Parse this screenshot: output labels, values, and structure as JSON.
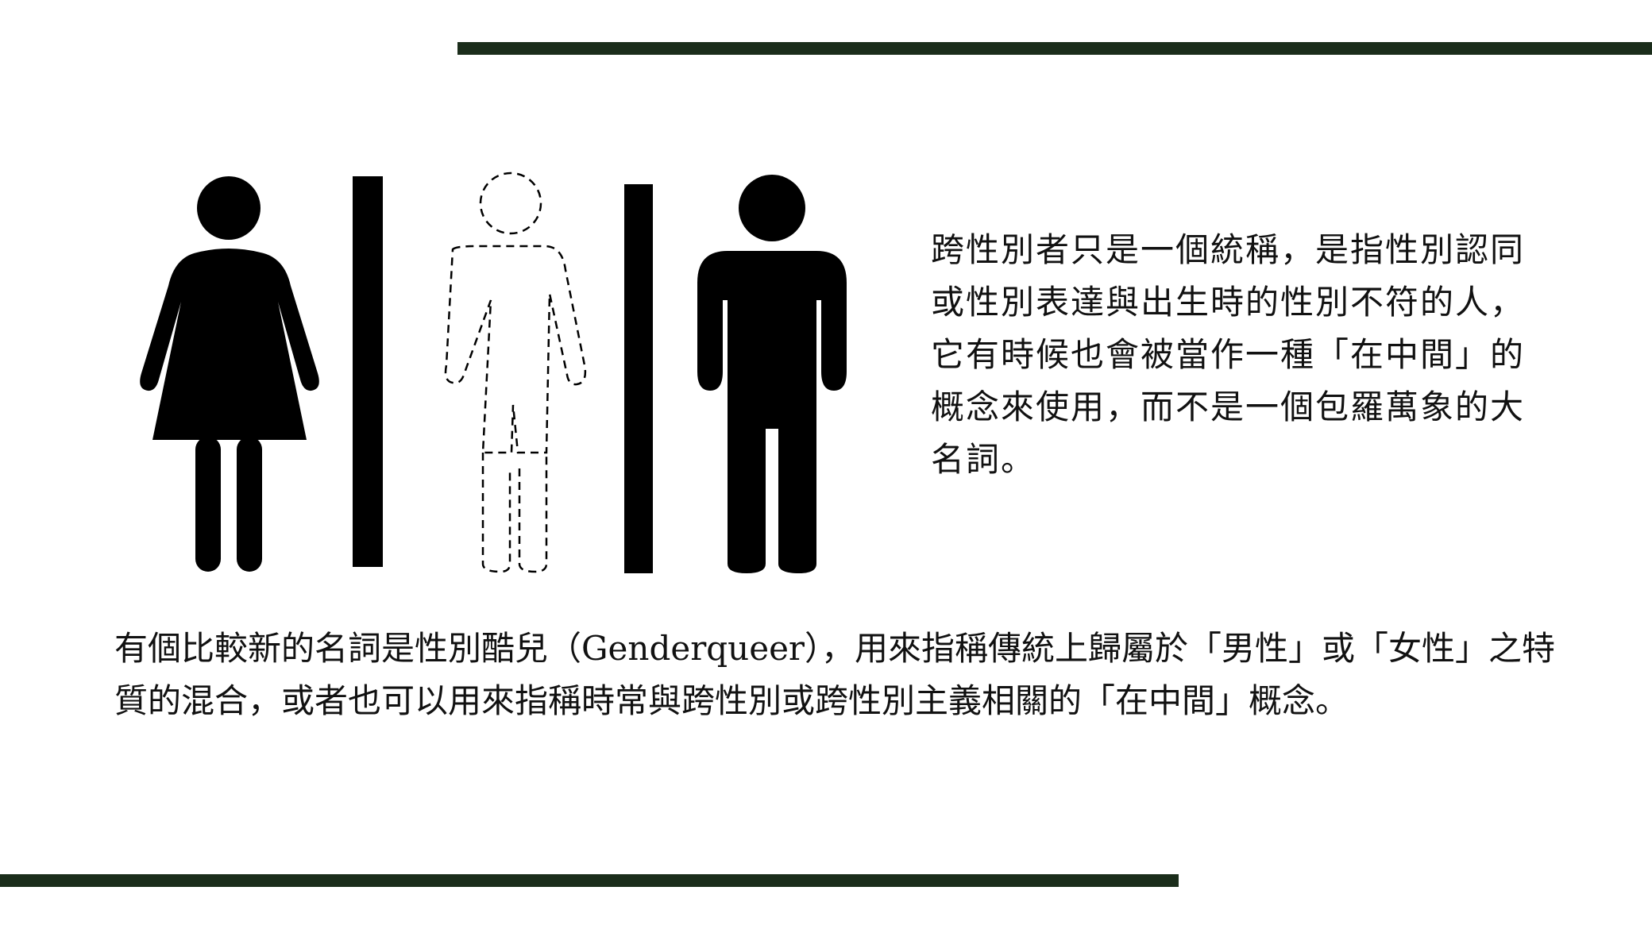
{
  "colors": {
    "rule": "#1b2d1b",
    "icon": "#000000",
    "background": "#ffffff"
  },
  "icons": {
    "female": "female-figure-icon",
    "transgender": "dashed-outline-figure-icon",
    "male": "male-figure-icon"
  },
  "side_paragraph": "跨性別者只是一個統稱，是指性別認同或性別表達與出生時的性別不符的人，它有時候也會被當作一種「在中間」的概念來使用，而不是一個包羅萬象的大名詞。",
  "bottom_paragraph": "有個比較新的名詞是性別酷兒（Genderqueer），用來指稱傳統上歸屬於「男性」或「女性」之特質的混合，或者也可以用來指稱時常與跨性別或跨性別主義相關的「在中間」概念。"
}
